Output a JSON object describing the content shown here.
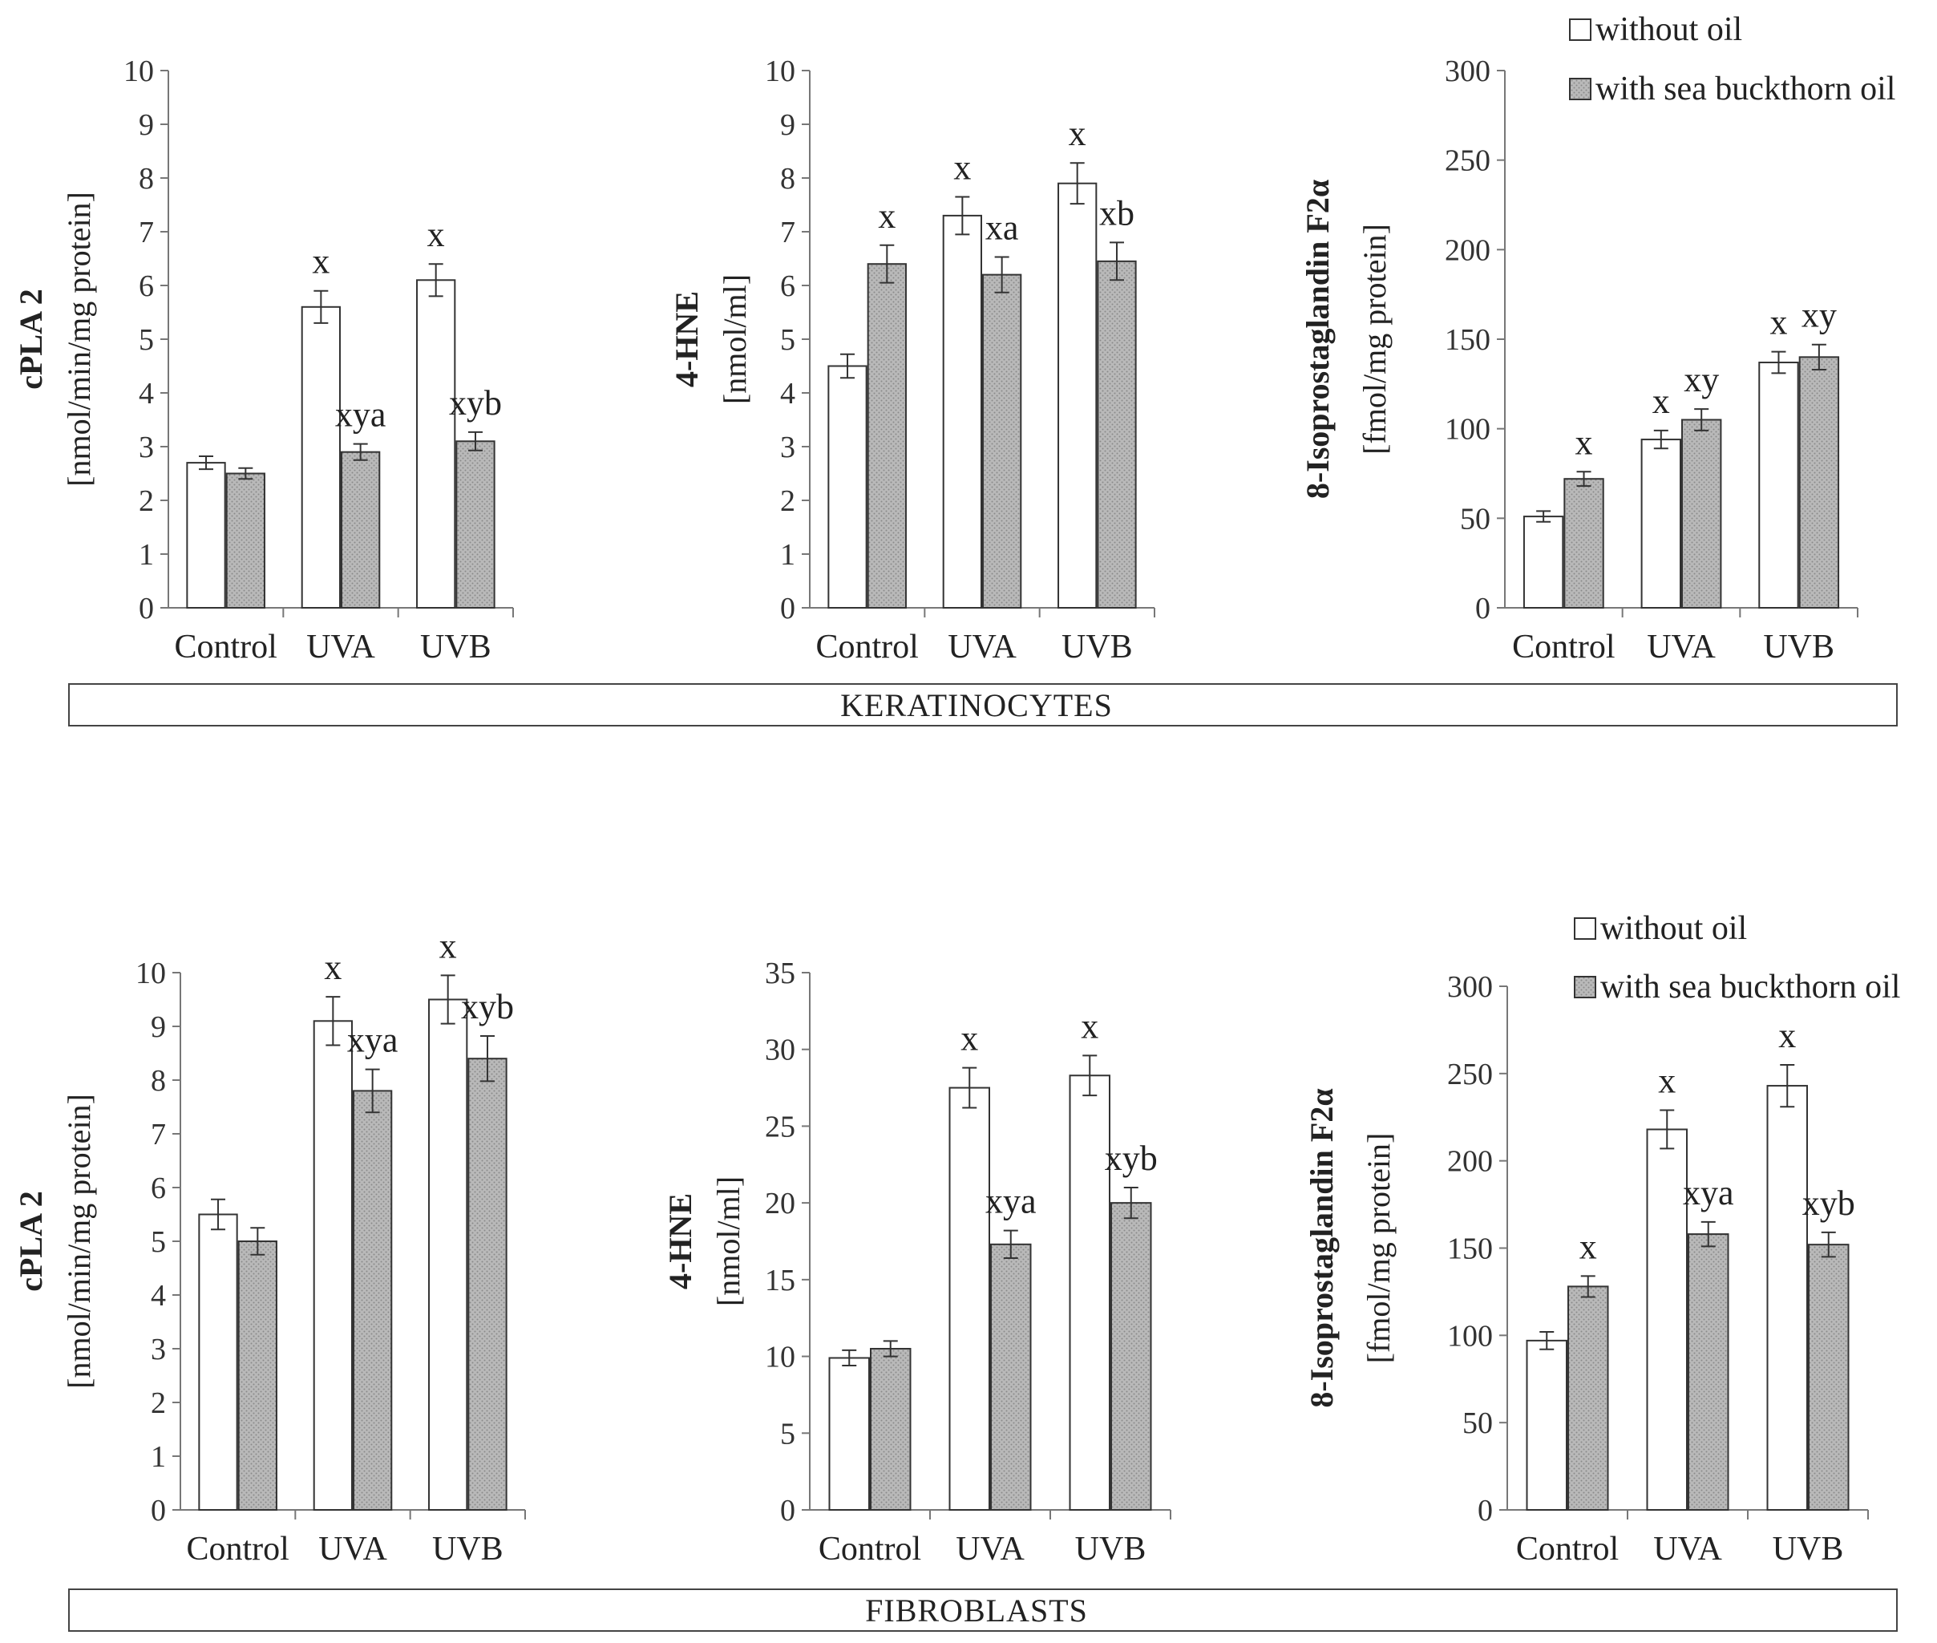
{
  "legend": {
    "without_oil": "without oil",
    "with_oil": "with sea buckthorn oil"
  },
  "sections": {
    "top": "KERATINOCYTES",
    "bottom": "FIBROBLASTS"
  },
  "colors": {
    "without_oil_fill": "#ffffff",
    "with_oil_fill": "#b9b9b9",
    "bar_stroke": "#333333",
    "axis": "#777777"
  },
  "chart_data": [
    {
      "id": "ker_cpla2",
      "type": "bar",
      "section": "KERATINOCYTES",
      "title": "",
      "ylabel": "cPLA 2",
      "yunit": "[nmol/min/mg protein]",
      "categories": [
        "Control",
        "UVA",
        "UVB"
      ],
      "ylim": [
        0,
        10
      ],
      "ytick_step": 1,
      "series": [
        {
          "name": "without oil",
          "values": [
            2.7,
            5.6,
            6.1
          ],
          "errors": [
            0.12,
            0.3,
            0.3
          ],
          "labels": [
            "",
            "x",
            "x"
          ]
        },
        {
          "name": "with sea buckthorn oil",
          "values": [
            2.5,
            2.9,
            3.1
          ],
          "errors": [
            0.1,
            0.15,
            0.17
          ],
          "labels": [
            "",
            "xya",
            "xyb"
          ]
        }
      ]
    },
    {
      "id": "ker_hne",
      "type": "bar",
      "section": "KERATINOCYTES",
      "title": "",
      "ylabel": "4-HNE",
      "yunit": "[nmol/ml]",
      "categories": [
        "Control",
        "UVA",
        "UVB"
      ],
      "ylim": [
        0,
        10
      ],
      "ytick_step": 1,
      "series": [
        {
          "name": "without oil",
          "values": [
            4.5,
            7.3,
            7.9
          ],
          "errors": [
            0.22,
            0.35,
            0.38
          ],
          "labels": [
            "",
            "x",
            "x"
          ]
        },
        {
          "name": "with sea buckthorn oil",
          "values": [
            6.4,
            6.2,
            6.45
          ],
          "errors": [
            0.35,
            0.33,
            0.35
          ],
          "labels": [
            "x",
            "xa",
            "xb"
          ]
        }
      ]
    },
    {
      "id": "ker_iso",
      "type": "bar",
      "section": "KERATINOCYTES",
      "title": "",
      "ylabel": "8-Isoprostaglandin F2α",
      "yunit": "[fmol/mg protein]",
      "categories": [
        "Control",
        "UVA",
        "UVB"
      ],
      "ylim": [
        0,
        300
      ],
      "ytick_step": 50,
      "series": [
        {
          "name": "without oil",
          "values": [
            51,
            94,
            137
          ],
          "errors": [
            3,
            5,
            6
          ],
          "labels": [
            "",
            "x",
            "x"
          ]
        },
        {
          "name": "with sea buckthorn oil",
          "values": [
            72,
            105,
            140
          ],
          "errors": [
            4,
            6,
            7
          ],
          "labels": [
            "x",
            "xy",
            "xy"
          ]
        }
      ]
    },
    {
      "id": "fib_cpla2",
      "type": "bar",
      "section": "FIBROBLASTS",
      "title": "",
      "ylabel": "cPLA 2",
      "yunit": "[nmol/min/mg protein]",
      "categories": [
        "Control",
        "UVA",
        "UVB"
      ],
      "ylim": [
        0,
        10
      ],
      "ytick_step": 1,
      "series": [
        {
          "name": "without oil",
          "values": [
            5.5,
            9.1,
            9.5
          ],
          "errors": [
            0.28,
            0.45,
            0.45
          ],
          "labels": [
            "",
            "x",
            "x"
          ]
        },
        {
          "name": "with sea buckthorn oil",
          "values": [
            5.0,
            7.8,
            8.4
          ],
          "errors": [
            0.25,
            0.4,
            0.42
          ],
          "labels": [
            "",
            "xya",
            "xyb"
          ]
        }
      ]
    },
    {
      "id": "fib_hne",
      "type": "bar",
      "section": "FIBROBLASTS",
      "title": "",
      "ylabel": "4-HNE",
      "yunit": "[nmol/ml]",
      "categories": [
        "Control",
        "UVA",
        "UVB"
      ],
      "ylim": [
        0,
        35
      ],
      "ytick_step": 5,
      "series": [
        {
          "name": "without oil",
          "values": [
            9.9,
            27.5,
            28.3
          ],
          "errors": [
            0.5,
            1.3,
            1.3
          ],
          "labels": [
            "",
            "x",
            "x"
          ]
        },
        {
          "name": "with sea buckthorn oil",
          "values": [
            10.5,
            17.3,
            20.0
          ],
          "errors": [
            0.5,
            0.9,
            1.0
          ],
          "labels": [
            "",
            "xya",
            "xyb"
          ]
        }
      ]
    },
    {
      "id": "fib_iso",
      "type": "bar",
      "section": "FIBROBLASTS",
      "title": "",
      "ylabel": "8-Isoprostaglandin F2α",
      "yunit": "[fmol/mg protein]",
      "categories": [
        "Control",
        "UVA",
        "UVB"
      ],
      "ylim": [
        0,
        300
      ],
      "ytick_step": 50,
      "series": [
        {
          "name": "without oil",
          "values": [
            97,
            218,
            243
          ],
          "errors": [
            5,
            11,
            12
          ],
          "labels": [
            "",
            "x",
            "x"
          ]
        },
        {
          "name": "with sea buckthorn oil",
          "values": [
            128,
            158,
            152
          ],
          "errors": [
            6,
            7,
            7
          ],
          "labels": [
            "x",
            "xya",
            "xyb"
          ]
        }
      ]
    }
  ]
}
